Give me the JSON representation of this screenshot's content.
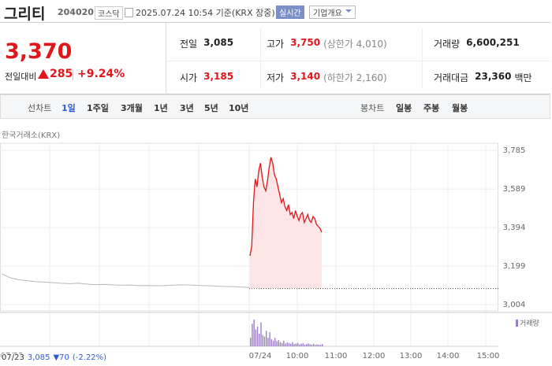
{
  "header": {
    "name": "그리티",
    "code": "204020",
    "market": "코스닥",
    "timestamp": "2025.07.24 10:54 기준(KRX 장중)",
    "realtime": "실시간",
    "company_info": "기업개요"
  },
  "quote": {
    "price": "3,370",
    "change_label": "전일대비",
    "change": "285",
    "change_pct": "+9.24%"
  },
  "stats": [
    {
      "label": "전일",
      "value": "3,085",
      "color": "#222"
    },
    {
      "label": "고가",
      "value": "3,750",
      "note": "(상한가 4,010)",
      "color": "#e0161a"
    },
    {
      "label": "거래량",
      "value": "6,600,251",
      "color": "#222"
    },
    {
      "label": "시가",
      "value": "3,185",
      "color": "#e0161a"
    },
    {
      "label": "저가",
      "value": "3,140",
      "note": "(하한가 2,160)",
      "color": "#e0161a"
    },
    {
      "label": "거래대금",
      "value": "23,360",
      "note": "백만",
      "color": "#222"
    }
  ],
  "tabs": {
    "line_label": "선차트",
    "line_periods": [
      "1일",
      "1주일",
      "3개월",
      "1년",
      "3년",
      "5년",
      "10년"
    ],
    "selected": 0,
    "candle_label": "봉차트",
    "candle_periods": [
      "일봉",
      "주봉",
      "월봉"
    ]
  },
  "chart_data": {
    "type": "line",
    "source": "한국거래소(KRX)",
    "ylim": [
      3004,
      3785
    ],
    "yticks": [
      {
        "value": 3004,
        "label": "3,004"
      },
      {
        "value": 3199,
        "label": "3,199"
      },
      {
        "value": 3394,
        "label": "3,394"
      },
      {
        "value": 3589,
        "label": "3,589"
      },
      {
        "value": 3785,
        "label": "3,785"
      }
    ],
    "x_labels": [
      "07/23",
      "07/24",
      "10:00",
      "11:00",
      "12:00",
      "13:00",
      "14:00",
      "15:00"
    ],
    "prev_close": 3085,
    "series": [
      {
        "color": "#b8b8b8",
        "values": [
          3160,
          3140,
          3130,
          3125,
          3120,
          3118,
          3115,
          3112,
          3110,
          3112,
          3108,
          3105,
          3106,
          3104,
          3102,
          3103,
          3100,
          3101,
          3099,
          3100,
          3102,
          3104,
          3103,
          3101,
          3100,
          3098,
          3096,
          3095,
          3093,
          3090
        ]
      },
      {
        "color": "#e0161a",
        "fill": "#fde4e6",
        "values": [
          3251,
          3300,
          3520,
          3640,
          3600,
          3680,
          3720,
          3650,
          3600,
          3580,
          3630,
          3700,
          3750,
          3720,
          3660,
          3640,
          3600,
          3560,
          3520,
          3540,
          3500,
          3480,
          3510,
          3460,
          3470,
          3440,
          3480,
          3450,
          3430,
          3460,
          3470,
          3420,
          3440,
          3460,
          3430,
          3420,
          3450,
          3440,
          3410,
          3400,
          3390,
          3370
        ]
      }
    ],
    "volume_label": "거래량",
    "volume_color": "#9b7fc4",
    "volume": [
      30,
      80,
      95,
      60,
      70,
      45,
      85,
      40,
      35,
      55,
      30,
      50,
      25,
      20,
      30,
      18,
      22,
      15,
      12,
      20,
      10,
      14,
      12,
      9,
      15,
      8,
      10,
      12,
      7,
      9,
      11,
      6,
      8,
      10,
      7,
      6,
      9,
      5,
      7,
      6,
      5,
      8
    ]
  },
  "footer": {
    "date": "07/23",
    "close": "3,085",
    "change": "▼70",
    "change_pct": "(-2.22%)"
  }
}
